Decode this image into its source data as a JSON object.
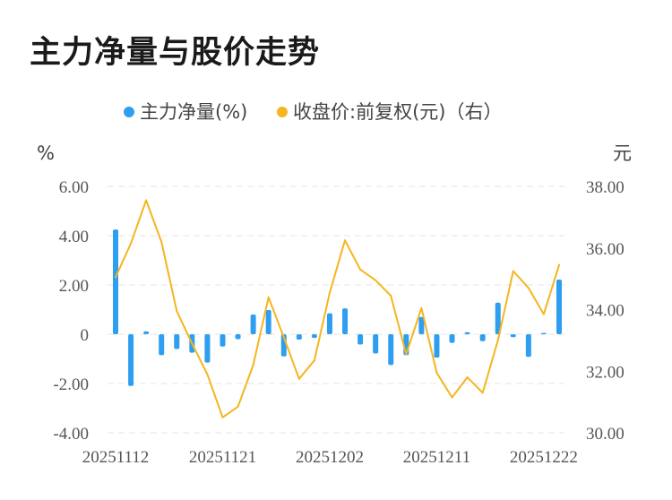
{
  "title": "主力净量与股价走势",
  "chart_data": {
    "type": "bar+line",
    "title": "主力净量与股价走势",
    "left_unit": "%",
    "right_unit": "元",
    "legend_placement": "top-center",
    "grid": true,
    "left_ticks": [
      "6.00",
      "4.00",
      "2.00",
      "0",
      "-2.00",
      "-4.00"
    ],
    "right_ticks": [
      "38.00",
      "36.00",
      "34.00",
      "32.00",
      "30.00"
    ],
    "ylim_left": [
      -4,
      6
    ],
    "ylim_right": [
      30,
      38
    ],
    "x_tick_labels": [
      "20251112",
      "20251121",
      "20251202",
      "20251211",
      "20251222"
    ],
    "x_tick_indices": [
      0,
      7,
      14,
      21,
      28
    ],
    "series": [
      {
        "name": "主力净量(%)",
        "type": "bar",
        "axis": "left",
        "color": "#2e9ef0",
        "values": [
          4.25,
          -2.1,
          0.12,
          -0.85,
          -0.6,
          -0.75,
          -1.15,
          -0.5,
          -0.2,
          0.8,
          0.98,
          -0.9,
          -0.22,
          -0.15,
          0.85,
          1.05,
          -0.42,
          -0.78,
          -1.25,
          -0.85,
          0.7,
          -0.95,
          -0.35,
          0.08,
          -0.28,
          1.28,
          -0.12,
          -0.92,
          0.05,
          2.22
        ]
      },
      {
        "name": "收盘价:前复权(元)（右）",
        "type": "line",
        "axis": "right",
        "color": "#f5b51e",
        "values": [
          35.05,
          36.15,
          37.55,
          36.2,
          33.95,
          32.9,
          31.9,
          30.5,
          30.85,
          32.2,
          34.4,
          33.1,
          31.75,
          32.35,
          34.55,
          36.25,
          35.3,
          34.95,
          34.45,
          32.55,
          34.05,
          31.95,
          31.15,
          31.8,
          31.3,
          33.0,
          35.25,
          34.7,
          33.85,
          35.45
        ]
      }
    ]
  }
}
